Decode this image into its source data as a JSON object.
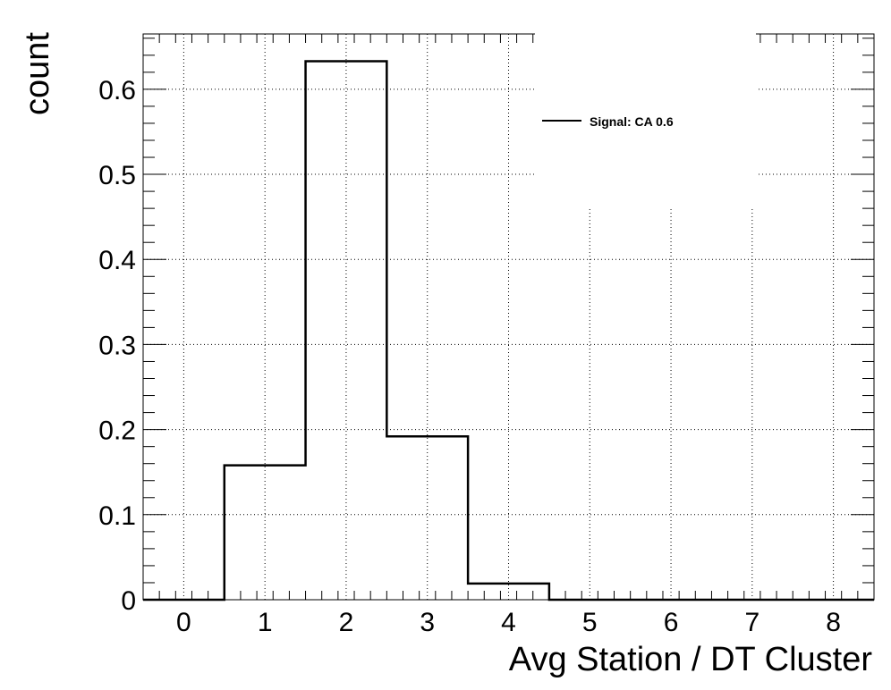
{
  "chart_data": {
    "type": "histogram",
    "xlabel": "Avg Station / DT Cluster",
    "ylabel": "count",
    "xlim": [
      -0.5,
      8.5
    ],
    "ylim": [
      0,
      0.665
    ],
    "x_ticks": [
      0,
      1,
      2,
      3,
      4,
      5,
      6,
      7,
      8
    ],
    "y_ticks": [
      0,
      0.1,
      0.2,
      0.3,
      0.4,
      0.5,
      0.6
    ],
    "grid": true,
    "legend_position": "top-right",
    "series": [
      {
        "name": "Signal: CA 0.6",
        "color": "#000000",
        "bin_edges": [
          -0.5,
          0.5,
          1.5,
          2.5,
          3.5,
          4.5,
          5.5,
          6.5,
          7.5,
          8.5
        ],
        "values": [
          0,
          0.158,
          0.633,
          0.192,
          0.019,
          0,
          0,
          0,
          0
        ]
      }
    ]
  }
}
